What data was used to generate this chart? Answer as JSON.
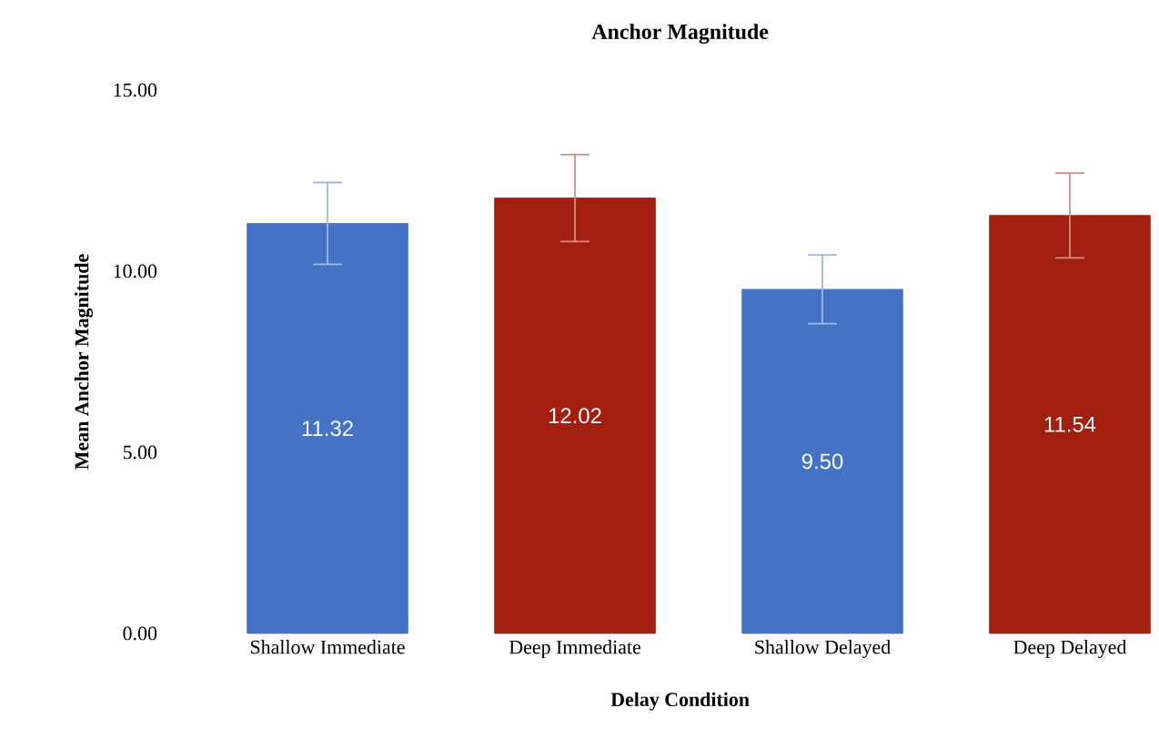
{
  "chart_data": {
    "type": "bar",
    "title": "Anchor Magnitude",
    "xlabel": "Delay Condition",
    "ylabel": "Mean Anchor Magnitude",
    "categories": [
      "Shallow Immediate",
      "Deep Immediate",
      "Shallow Delayed",
      "Deep Delayed"
    ],
    "values": [
      11.32,
      12.02,
      9.5,
      11.54
    ],
    "colors": [
      "#4472c4",
      "#a21e0e",
      "#4472c4",
      "#a21e0e"
    ],
    "errors": [
      1.13,
      1.2,
      0.95,
      1.17
    ],
    "value_labels": [
      "11.32",
      "12.02",
      "9.50",
      "11.54"
    ],
    "ylim": [
      0,
      15
    ],
    "yticks": [
      {
        "value": 0,
        "label": "0.00"
      },
      {
        "value": 5,
        "label": "5.00"
      },
      {
        "value": 10,
        "label": "10.00"
      },
      {
        "value": 15,
        "label": "15.00"
      }
    ],
    "grid": false
  }
}
